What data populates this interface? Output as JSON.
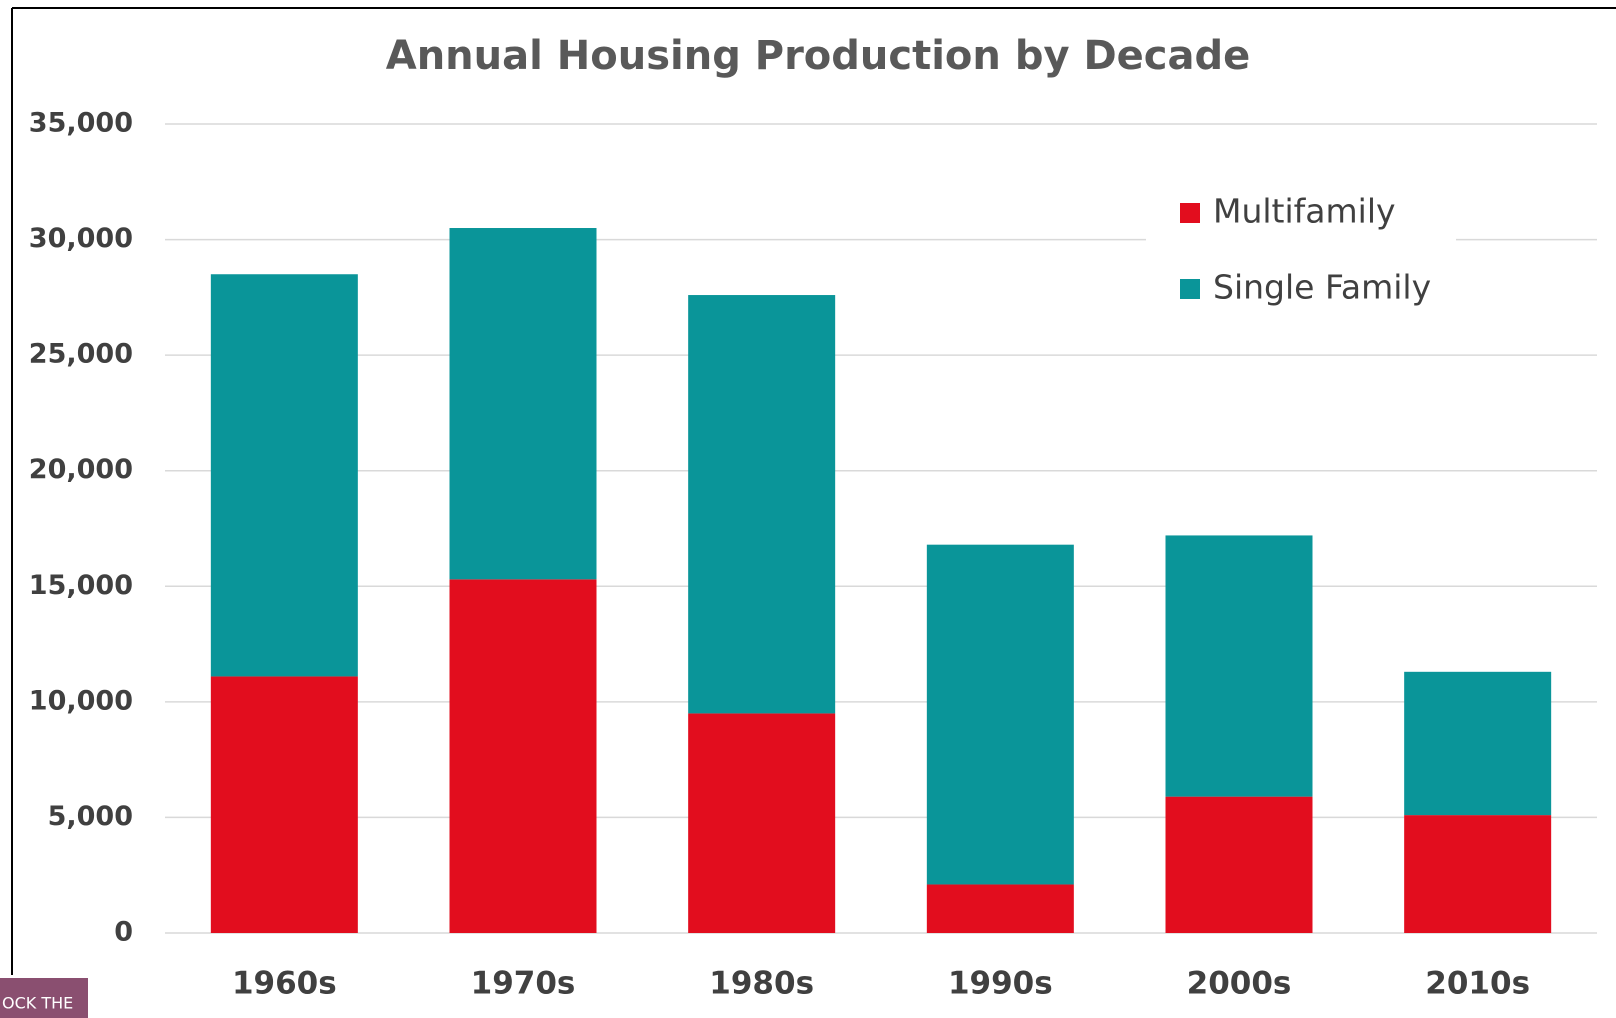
{
  "chart_data": {
    "type": "stacked_bar",
    "title": "Annual Housing Production by Decade",
    "categories": [
      "1960s",
      "1970s",
      "1980s",
      "1990s",
      "2000s",
      "2010s"
    ],
    "series": [
      {
        "name": "Multifamily",
        "color": "#e20d1e",
        "values": [
          11100,
          15300,
          9500,
          2100,
          5900,
          5100
        ]
      },
      {
        "name": "Single Family",
        "color": "#0a9599",
        "values": [
          17400,
          15200,
          18100,
          14700,
          11300,
          6200
        ]
      }
    ],
    "ylim": [
      0,
      35000
    ],
    "yticks": [
      0,
      {
        "value": 5000,
        "label": "5,000"
      },
      {
        "value": 10000,
        "label": "10,000"
      },
      {
        "value": 15000,
        "label": "15,000"
      },
      {
        "value": 20000,
        "label": "20,000"
      },
      {
        "value": 25000,
        "label": "25,000"
      },
      {
        "value": 30000,
        "label": "30,000"
      },
      {
        "value": 35000,
        "label": "35,000"
      }
    ],
    "grid": true,
    "legend": "upper right"
  },
  "logo": {
    "text": "OCK THE"
  }
}
